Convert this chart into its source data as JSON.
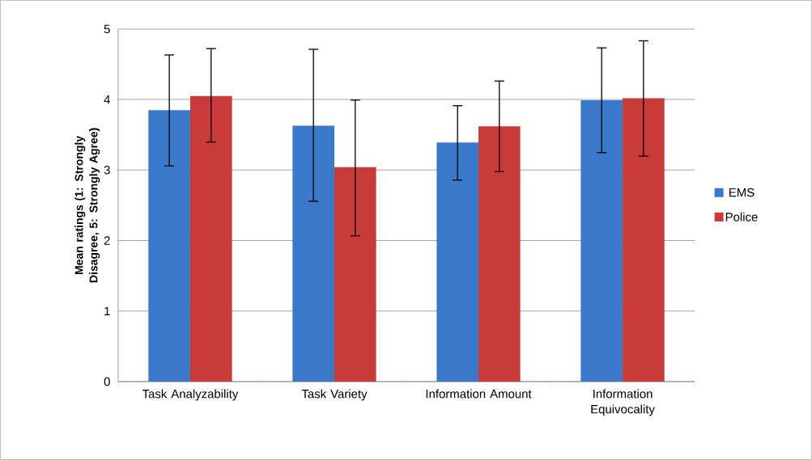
{
  "chart_data": {
    "type": "bar",
    "ylabel": "Mean ratings (1: Strongly Disagree, 5: Strongly Agree)",
    "categories": [
      "Task Analyzability",
      "Task Variety",
      "Information Amount",
      "Information Equivocality"
    ],
    "series": [
      {
        "name": "EMS",
        "color": "#3a78c9",
        "values": [
          3.85,
          3.63,
          3.39,
          3.99
        ],
        "errors": [
          [
            3.05,
            4.64
          ],
          [
            2.55,
            4.72
          ],
          [
            2.85,
            3.92
          ],
          [
            3.24,
            4.74
          ]
        ]
      },
      {
        "name": "Police",
        "color": "#c83b37",
        "values": [
          4.05,
          3.04,
          3.62,
          4.02
        ],
        "errors": [
          [
            3.39,
            4.73
          ],
          [
            2.06,
            4.0
          ],
          [
            2.97,
            4.27
          ],
          [
            3.19,
            4.84
          ]
        ]
      }
    ],
    "ylim": [
      0,
      5
    ],
    "yticks": [
      0,
      1,
      2,
      3,
      4,
      5
    ],
    "grid": "y",
    "legend": "right"
  }
}
